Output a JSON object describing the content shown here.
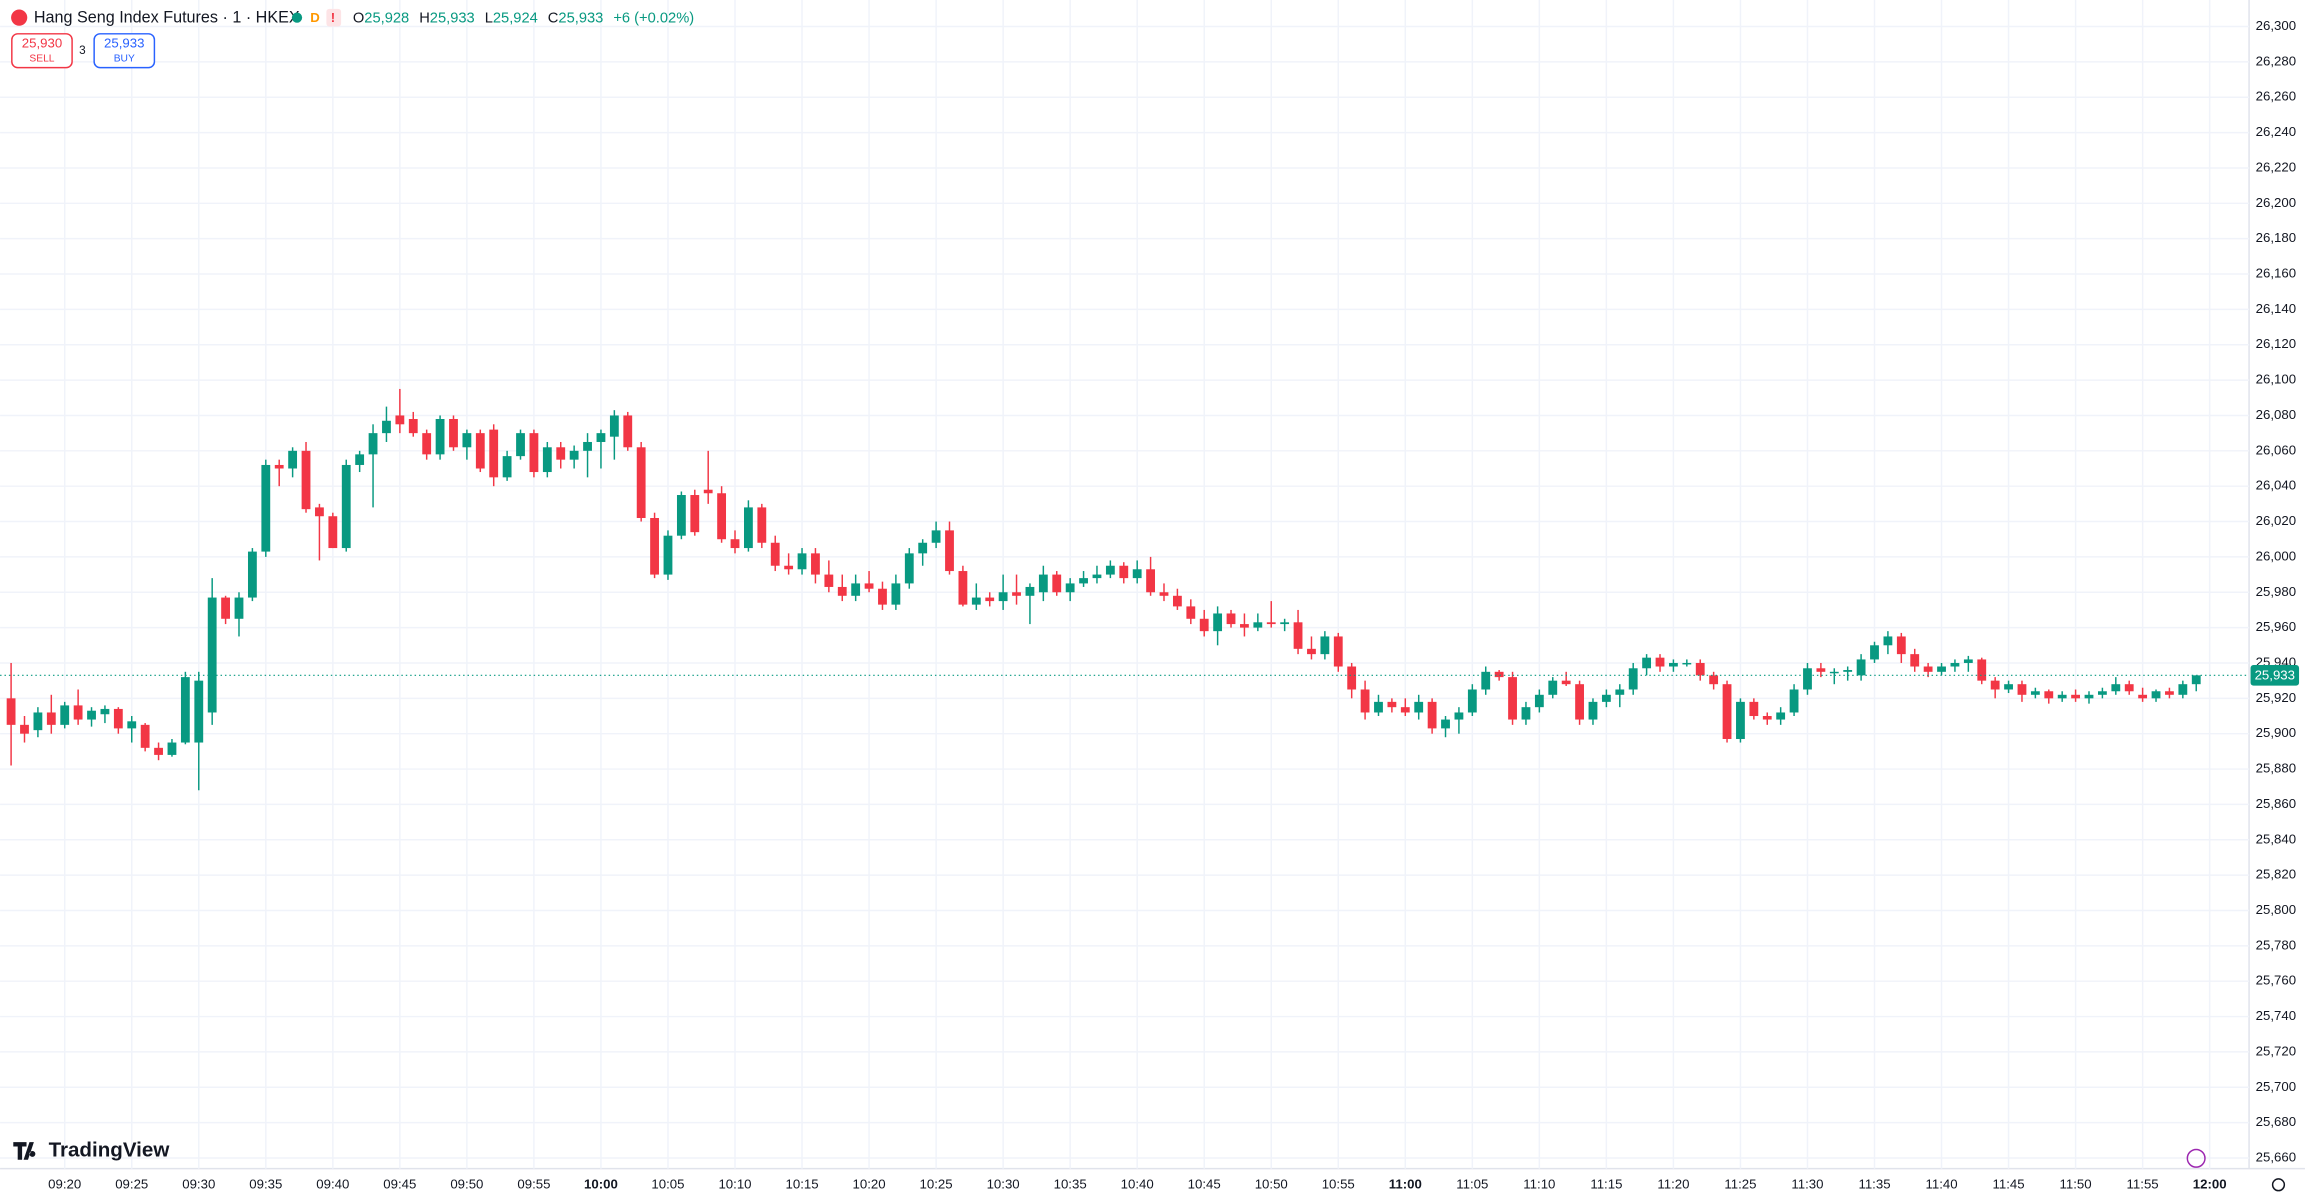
{
  "chart_data": {
    "type": "candlestick",
    "header": {
      "symbol": "Hang Seng Index Futures · 1 · HKEX",
      "o_label": "O",
      "o": "25,928",
      "h_label": "H",
      "h": "25,933",
      "l_label": "L",
      "l": "25,924",
      "c_label": "C",
      "c": "25,933",
      "change": "+6 (+0.02%)"
    },
    "trade": {
      "sell_price": "25,930",
      "sell": "SELL",
      "spread": "3",
      "buy_price": "25,933",
      "buy": "BUY"
    },
    "brand": "TradingView",
    "up_color": "#089981",
    "down_color": "#f23645",
    "grid": true,
    "last_price": {
      "value": 25933,
      "label": "25,933"
    },
    "ylim": [
      25654,
      26315
    ],
    "yticks": [
      {
        "value": 25660,
        "label": "25,660"
      },
      {
        "value": 25680,
        "label": "25,680"
      },
      {
        "value": 25700,
        "label": "25,700"
      },
      {
        "value": 25720,
        "label": "25,720"
      },
      {
        "value": 25740,
        "label": "25,740"
      },
      {
        "value": 25760,
        "label": "25,760"
      },
      {
        "value": 25780,
        "label": "25,780"
      },
      {
        "value": 25800,
        "label": "25,800"
      },
      {
        "value": 25820,
        "label": "25,820"
      },
      {
        "value": 25840,
        "label": "25,840"
      },
      {
        "value": 25860,
        "label": "25,860"
      },
      {
        "value": 25880,
        "label": "25,880"
      },
      {
        "value": 25900,
        "label": "25,900"
      },
      {
        "value": 25920,
        "label": "25,920"
      },
      {
        "value": 25940,
        "label": "25,940"
      },
      {
        "value": 25960,
        "label": "25,960"
      },
      {
        "value": 25980,
        "label": "25,980"
      },
      {
        "value": 26000,
        "label": "26,000"
      },
      {
        "value": 26020,
        "label": "26,020"
      },
      {
        "value": 26040,
        "label": "26,040"
      },
      {
        "value": 26060,
        "label": "26,060"
      },
      {
        "value": 26080,
        "label": "26,080"
      },
      {
        "value": 26100,
        "label": "26,100"
      },
      {
        "value": 26120,
        "label": "26,120"
      },
      {
        "value": 26140,
        "label": "26,140"
      },
      {
        "value": 26160,
        "label": "26,160"
      },
      {
        "value": 26180,
        "label": "26,180"
      },
      {
        "value": 26200,
        "label": "26,200"
      },
      {
        "value": 26220,
        "label": "26,220"
      },
      {
        "value": 26240,
        "label": "26,240"
      },
      {
        "value": 26260,
        "label": "26,260"
      },
      {
        "value": 26280,
        "label": "26,280"
      },
      {
        "value": 26300,
        "label": "26,300"
      }
    ],
    "categories": [
      null,
      null,
      null,
      null,
      "09:20",
      null,
      null,
      null,
      null,
      "09:25",
      null,
      null,
      null,
      null,
      "09:30",
      null,
      null,
      null,
      null,
      "09:35",
      null,
      null,
      null,
      null,
      "09:40",
      null,
      null,
      null,
      null,
      "09:45",
      null,
      null,
      null,
      null,
      "09:50",
      null,
      null,
      null,
      null,
      "09:55",
      null,
      null,
      null,
      null,
      "10:00",
      null,
      null,
      null,
      null,
      "10:05",
      null,
      null,
      null,
      null,
      "10:10",
      null,
      null,
      null,
      null,
      "10:15",
      null,
      null,
      null,
      null,
      "10:20",
      null,
      null,
      null,
      null,
      "10:25",
      null,
      null,
      null,
      null,
      "10:30",
      null,
      null,
      null,
      null,
      "10:35",
      null,
      null,
      null,
      null,
      "10:40",
      null,
      null,
      null,
      null,
      "10:45",
      null,
      null,
      null,
      null,
      "10:50",
      null,
      null,
      null,
      null,
      "10:55",
      null,
      null,
      null,
      null,
      "11:00",
      null,
      null,
      null,
      null,
      "11:05",
      null,
      null,
      null,
      null,
      "11:10",
      null,
      null,
      null,
      null,
      "11:15",
      null,
      null,
      null,
      null,
      "11:20",
      null,
      null,
      null,
      null,
      "11:25",
      null,
      null,
      null,
      null,
      "11:30",
      null,
      null,
      null,
      null,
      "11:35",
      null,
      null,
      null,
      null,
      "11:40",
      null,
      null,
      null,
      null,
      "11:45",
      null,
      null,
      null,
      null,
      "11:50",
      null,
      null,
      null,
      null,
      "11:55",
      null,
      null,
      null,
      null,
      "12:00"
    ],
    "ohlc": [
      [
        25920,
        25940,
        25882,
        25905
      ],
      [
        25905,
        25910,
        25895,
        25900
      ],
      [
        25902,
        25915,
        25898,
        25912
      ],
      [
        25912,
        25922,
        25900,
        25905
      ],
      [
        25905,
        25918,
        25903,
        25916
      ],
      [
        25916,
        25925,
        25905,
        25908
      ],
      [
        25908,
        25915,
        25904,
        25913
      ],
      [
        25911,
        25916,
        25906,
        25914
      ],
      [
        25914,
        25915,
        25900,
        25903
      ],
      [
        25903,
        25910,
        25895,
        25907
      ],
      [
        25905,
        25906,
        25890,
        25892
      ],
      [
        25892,
        25895,
        25885,
        25888
      ],
      [
        25888,
        25897,
        25887,
        25895
      ],
      [
        25895,
        25935,
        25894,
        25932
      ],
      [
        25895,
        25935,
        25868,
        25930
      ],
      [
        25912,
        25988,
        25905,
        25977
      ],
      [
        25977,
        25978,
        25962,
        25965
      ],
      [
        25965,
        25980,
        25955,
        25977
      ],
      [
        25977,
        26005,
        25975,
        26003
      ],
      [
        26003,
        26055,
        26000,
        26052
      ],
      [
        26052,
        26055,
        26040,
        26050
      ],
      [
        26050,
        26062,
        26045,
        26060
      ],
      [
        26060,
        26065,
        26025,
        26027
      ],
      [
        26028,
        26030,
        25998,
        26023
      ],
      [
        26023,
        26025,
        26005,
        26005
      ],
      [
        26005,
        26055,
        26003,
        26052
      ],
      [
        26052,
        26060,
        26048,
        26058
      ],
      [
        26058,
        26075,
        26028,
        26070
      ],
      [
        26070,
        26085,
        26065,
        26077
      ],
      [
        26080,
        26095,
        26070,
        26075
      ],
      [
        26078,
        26082,
        26068,
        26070
      ],
      [
        26070,
        26072,
        26055,
        26058
      ],
      [
        26058,
        26080,
        26055,
        26078
      ],
      [
        26078,
        26080,
        26060,
        26062
      ],
      [
        26062,
        26072,
        26055,
        26070
      ],
      [
        26070,
        26072,
        26048,
        26050
      ],
      [
        26072,
        26075,
        26040,
        26045
      ],
      [
        26045,
        26060,
        26043,
        26057
      ],
      [
        26057,
        26072,
        26055,
        26070
      ],
      [
        26070,
        26072,
        26045,
        26048
      ],
      [
        26048,
        26065,
        26045,
        26062
      ],
      [
        26062,
        26065,
        26050,
        26055
      ],
      [
        26055,
        26063,
        26050,
        26060
      ],
      [
        26060,
        26070,
        26045,
        26065
      ],
      [
        26065,
        26072,
        26050,
        26070
      ],
      [
        26068,
        26083,
        26055,
        26080
      ],
      [
        26080,
        26082,
        26060,
        26062
      ],
      [
        26062,
        26065,
        26020,
        26022
      ],
      [
        26022,
        26025,
        25988,
        25990
      ],
      [
        25990,
        26015,
        25987,
        26012
      ],
      [
        26012,
        26037,
        26010,
        26035
      ],
      [
        26035,
        26038,
        26012,
        26014
      ],
      [
        26038,
        26060,
        26030,
        26036
      ],
      [
        26036,
        26040,
        26008,
        26010
      ],
      [
        26010,
        26015,
        26002,
        26005
      ],
      [
        26005,
        26032,
        26003,
        26028
      ],
      [
        26028,
        26030,
        26005,
        26008
      ],
      [
        26008,
        26012,
        25992,
        25995
      ],
      [
        25995,
        26002,
        25990,
        25993
      ],
      [
        25993,
        26005,
        25990,
        26002
      ],
      [
        26002,
        26005,
        25985,
        25990
      ],
      [
        25990,
        25998,
        25980,
        25983
      ],
      [
        25983,
        25990,
        25975,
        25978
      ],
      [
        25978,
        25990,
        25975,
        25985
      ],
      [
        25985,
        25992,
        25980,
        25982
      ],
      [
        25982,
        25986,
        25970,
        25973
      ],
      [
        25973,
        25990,
        25970,
        25985
      ],
      [
        25985,
        26005,
        25982,
        26002
      ],
      [
        26002,
        26010,
        25995,
        26008
      ],
      [
        26008,
        26020,
        26005,
        26015
      ],
      [
        26015,
        26020,
        25990,
        25992
      ],
      [
        25992,
        25995,
        25972,
        25973
      ],
      [
        25973,
        25985,
        25970,
        25977
      ],
      [
        25977,
        25980,
        25972,
        25975
      ],
      [
        25975,
        25990,
        25970,
        25980
      ],
      [
        25980,
        25990,
        25973,
        25978
      ],
      [
        25978,
        25985,
        25962,
        25983
      ],
      [
        25980,
        25995,
        25975,
        25990
      ],
      [
        25990,
        25992,
        25978,
        25980
      ],
      [
        25980,
        25988,
        25975,
        25985
      ],
      [
        25985,
        25992,
        25983,
        25988
      ],
      [
        25988,
        25995,
        25985,
        25990
      ],
      [
        25990,
        25998,
        25988,
        25995
      ],
      [
        25995,
        25997,
        25985,
        25988
      ],
      [
        25988,
        25998,
        25985,
        25993
      ],
      [
        25993,
        26000,
        25978,
        25980
      ],
      [
        25980,
        25985,
        25975,
        25978
      ],
      [
        25978,
        25982,
        25970,
        25972
      ],
      [
        25972,
        25976,
        25962,
        25965
      ],
      [
        25965,
        25970,
        25955,
        25958
      ],
      [
        25958,
        25972,
        25950,
        25968
      ],
      [
        25968,
        25970,
        25960,
        25962
      ],
      [
        25962,
        25968,
        25955,
        25960
      ],
      [
        25960,
        25968,
        25958,
        25963
      ],
      [
        25963,
        25975,
        25960,
        25962
      ],
      [
        25962,
        25965,
        25958,
        25963
      ],
      [
        25963,
        25970,
        25945,
        25948
      ],
      [
        25948,
        25955,
        25942,
        25945
      ],
      [
        25945,
        25958,
        25942,
        25955
      ],
      [
        25955,
        25957,
        25935,
        25938
      ],
      [
        25938,
        25940,
        25920,
        25925
      ],
      [
        25925,
        25930,
        25908,
        25912
      ],
      [
        25912,
        25922,
        25910,
        25918
      ],
      [
        25918,
        25920,
        25912,
        25915
      ],
      [
        25915,
        25920,
        25910,
        25912
      ],
      [
        25912,
        25922,
        25908,
        25918
      ],
      [
        25918,
        25920,
        25900,
        25903
      ],
      [
        25903,
        25910,
        25898,
        25908
      ],
      [
        25908,
        25915,
        25900,
        25912
      ],
      [
        25912,
        25928,
        25910,
        25925
      ],
      [
        25925,
        25938,
        25922,
        25935
      ],
      [
        25935,
        25936,
        25930,
        25932
      ],
      [
        25932,
        25935,
        25905,
        25908
      ],
      [
        25908,
        25918,
        25905,
        25915
      ],
      [
        25915,
        25925,
        25912,
        25922
      ],
      [
        25922,
        25932,
        25920,
        25930
      ],
      [
        25930,
        25935,
        25927,
        25928
      ],
      [
        25928,
        25930,
        25905,
        25908
      ],
      [
        25908,
        25920,
        25905,
        25918
      ],
      [
        25918,
        25925,
        25915,
        25922
      ],
      [
        25922,
        25928,
        25915,
        25925
      ],
      [
        25925,
        25940,
        25922,
        25937
      ],
      [
        25937,
        25945,
        25933,
        25943
      ],
      [
        25943,
        25945,
        25935,
        25938
      ],
      [
        25938,
        25942,
        25935,
        25940
      ],
      [
        25940,
        25942,
        25938,
        25940
      ],
      [
        25940,
        25942,
        25930,
        25933
      ],
      [
        25933,
        25935,
        25925,
        25928
      ],
      [
        25928,
        25930,
        25895,
        25897
      ],
      [
        25897,
        25920,
        25895,
        25918
      ],
      [
        25918,
        25920,
        25908,
        25910
      ],
      [
        25910,
        25912,
        25905,
        25908
      ],
      [
        25908,
        25915,
        25905,
        25912
      ],
      [
        25912,
        25928,
        25910,
        25925
      ],
      [
        25925,
        25940,
        25922,
        25937
      ],
      [
        25937,
        25940,
        25932,
        25935
      ],
      [
        25935,
        25937,
        25928,
        25935
      ],
      [
        25935,
        25938,
        25930,
        25936
      ],
      [
        25933,
        25945,
        25930,
        25942
      ],
      [
        25942,
        25952,
        25940,
        25950
      ],
      [
        25950,
        25958,
        25945,
        25955
      ],
      [
        25955,
        25957,
        25940,
        25945
      ],
      [
        25945,
        25948,
        25935,
        25938
      ],
      [
        25938,
        25940,
        25932,
        25935
      ],
      [
        25935,
        25940,
        25933,
        25938
      ],
      [
        25938,
        25942,
        25935,
        25940
      ],
      [
        25940,
        25944,
        25935,
        25942
      ],
      [
        25942,
        25943,
        25928,
        25930
      ],
      [
        25930,
        25932,
        25920,
        25925
      ],
      [
        25925,
        25930,
        25923,
        25928
      ],
      [
        25928,
        25930,
        25918,
        25922
      ],
      [
        25922,
        25926,
        25920,
        25924
      ],
      [
        25924,
        25925,
        25917,
        25920
      ],
      [
        25920,
        25924,
        25918,
        25922
      ],
      [
        25922,
        25925,
        25918,
        25920
      ],
      [
        25920,
        25924,
        25917,
        25922
      ],
      [
        25922,
        25926,
        25920,
        25924
      ],
      [
        25924,
        25932,
        25922,
        25928
      ],
      [
        25928,
        25930,
        25922,
        25924
      ],
      [
        25922,
        25926,
        25918,
        25920
      ],
      [
        25920,
        25925,
        25918,
        25924
      ],
      [
        25924,
        25926,
        25920,
        25922
      ],
      [
        25922,
        25930,
        25920,
        25928
      ],
      [
        25928,
        25933,
        25924,
        25933
      ],
      null
    ]
  }
}
